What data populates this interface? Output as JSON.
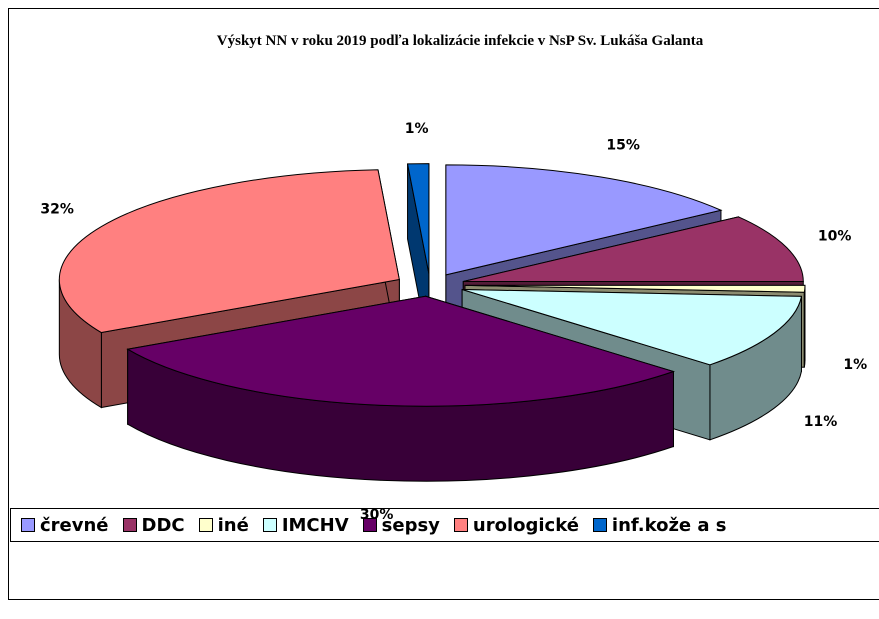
{
  "chart_data": {
    "type": "pie",
    "title": "Výskyt NN v roku 2019 podľa lokalizácie infekcie v NsP Sv. Lukáša Galanta",
    "categories": [
      "črevné",
      "DDC",
      "iné",
      "IMCHV",
      "sepsy",
      "urologické",
      "inf.kože a s"
    ],
    "values": [
      15,
      10,
      1,
      11,
      30,
      32,
      1
    ],
    "value_labels": [
      "15%",
      "10%",
      "1%",
      "11%",
      "30%",
      "32%",
      "1%"
    ],
    "colors": [
      "#9999ff",
      "#993366",
      "#ffffcc",
      "#ccffff",
      "#660066",
      "#ff8080",
      "#0066cc"
    ],
    "legend": "bottom"
  }
}
